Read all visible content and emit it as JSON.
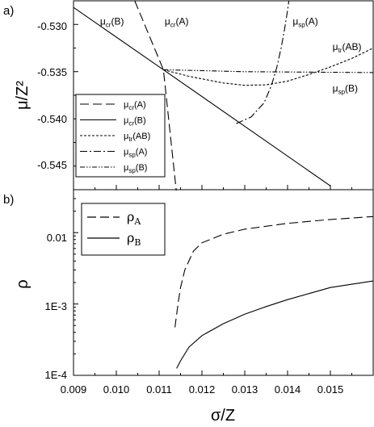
{
  "figure": {
    "x_axis_title": "σ/Z",
    "x_ticks": [
      "0.009",
      "0.010",
      "0.011",
      "0.012",
      "0.013",
      "0.014",
      "0.015"
    ]
  },
  "chart_data": [
    {
      "type": "line",
      "panel_label": "a)",
      "ylabel": "μ/Z²",
      "xlabel": "",
      "xlim": [
        0.009,
        0.016
      ],
      "ylim": [
        -0.5475,
        -0.5275
      ],
      "y_ticks": [
        "-0.530",
        "-0.535",
        "-0.540",
        "-0.545"
      ],
      "legend_position": "bottom-left",
      "series": [
        {
          "name": "μcr(A)",
          "style": "long-dash",
          "annotation": "μcr(A)",
          "points": [
            [
              0.01043,
              -0.5275
            ],
            [
              0.0111,
              -0.5348
            ],
            [
              0.0114,
              -0.5476
            ]
          ]
        },
        {
          "name": "μcr(B)",
          "style": "solid",
          "annotation": "μcr(B)",
          "points": [
            [
              0.009,
              -0.5282
            ],
            [
              0.0111,
              -0.5348
            ],
            [
              0.015,
              -0.5471
            ]
          ]
        },
        {
          "name": "μtr(AB)",
          "style": "short-dash",
          "annotation": "μtr(AB)",
          "points": [
            [
              0.0111,
              -0.5348
            ],
            [
              0.0117,
              -0.5355
            ],
            [
              0.0125,
              -0.5362
            ],
            [
              0.013,
              -0.53645
            ],
            [
              0.0135,
              -0.5364
            ],
            [
              0.014,
              -0.536
            ],
            [
              0.0145,
              -0.5353
            ],
            [
              0.015,
              -0.5345
            ],
            [
              0.0155,
              -0.5336
            ],
            [
              0.016,
              -0.5325
            ]
          ]
        },
        {
          "name": "μsp(A)",
          "style": "dash-dot",
          "annotation": "μsp(A)",
          "points": [
            [
              0.0128,
              -0.5405
            ],
            [
              0.01315,
              -0.5398
            ],
            [
              0.01345,
              -0.5383
            ],
            [
              0.01362,
              -0.5365
            ],
            [
              0.01375,
              -0.5345
            ],
            [
              0.01385,
              -0.5325
            ],
            [
              0.01393,
              -0.5305
            ],
            [
              0.014,
              -0.5285
            ],
            [
              0.01403,
              -0.5275
            ]
          ]
        },
        {
          "name": "μsp(B)",
          "style": "dash-dot-dot",
          "annotation": "μsp(B)",
          "points": [
            [
              0.0111,
              -0.5348
            ],
            [
              0.013,
              -0.535
            ],
            [
              0.016,
              -0.5351
            ]
          ]
        }
      ]
    },
    {
      "type": "line",
      "panel_label": "b)",
      "ylabel": "ρ",
      "xlabel": "σ/Z",
      "xlim": [
        0.009,
        0.016
      ],
      "ylim": [
        0.0001,
        0.04
      ],
      "y_scale": "log",
      "y_ticks": [
        "0.01",
        "1E-3",
        "1E-4"
      ],
      "legend_position": "top-left",
      "series": [
        {
          "name": "ρA",
          "style": "long-dash",
          "points": [
            [
              0.01137,
              0.00047
            ],
            [
              0.0114,
              0.00065
            ],
            [
              0.01145,
              0.0011
            ],
            [
              0.0115,
              0.0017
            ],
            [
              0.0116,
              0.003
            ],
            [
              0.0118,
              0.0055
            ],
            [
              0.012,
              0.0072
            ],
            [
              0.0125,
              0.0095
            ],
            [
              0.013,
              0.0112
            ],
            [
              0.014,
              0.0135
            ],
            [
              0.015,
              0.0153
            ],
            [
              0.016,
              0.0168
            ]
          ]
        },
        {
          "name": "ρB",
          "style": "solid",
          "points": [
            [
              0.01141,
              0.000125
            ],
            [
              0.0115,
              0.00016
            ],
            [
              0.0117,
              0.00025
            ],
            [
              0.012,
              0.00036
            ],
            [
              0.0125,
              0.00053
            ],
            [
              0.013,
              0.00072
            ],
            [
              0.0135,
              0.00092
            ],
            [
              0.014,
              0.00115
            ],
            [
              0.0145,
              0.0014
            ],
            [
              0.015,
              0.0017
            ],
            [
              0.016,
              0.0021
            ]
          ]
        }
      ]
    }
  ]
}
